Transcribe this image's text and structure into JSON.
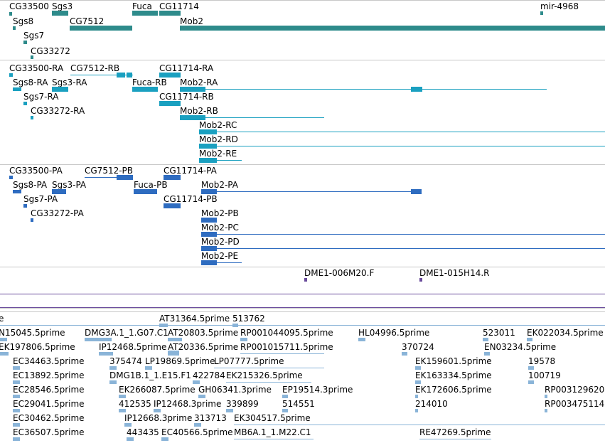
{
  "colors": {
    "gene": "#2e8b8b",
    "transcript": "#1aa0c0",
    "protein": "#2e6cc0",
    "clone": "#6a4c9c",
    "est": "#8ab4d8",
    "separator": "#c8c8c8"
  },
  "tracks": {
    "genes": {
      "labels": [
        "CG33500",
        "Sgs3",
        "Fuca",
        "CG11714",
        "mir-4968",
        "Sgs8",
        "CG7512",
        "Mob2",
        "Sgs7",
        "CG33272"
      ]
    },
    "transcripts": {
      "labels": [
        "CG33500-RA",
        "CG7512-RB",
        "CG11714-RA",
        "Sgs8-RA",
        "Sgs3-RA",
        "Fuca-RB",
        "Mob2-RA",
        "Sgs7-RA",
        "CG11714-RB",
        "CG33272-RA",
        "Mob2-RB",
        "Mob2-RC",
        "Mob2-RD",
        "Mob2-RE"
      ]
    },
    "proteins": {
      "labels": [
        "CG33500-PA",
        "CG7512-PB",
        "CG11714-PA",
        "Sgs8-PA",
        "Sgs3-PA",
        "Fuca-PB",
        "Mob2-PA",
        "Sgs7-PA",
        "CG11714-PB",
        "CG33272-PA",
        "Mob2-PB",
        "Mob2-PC",
        "Mob2-PD",
        "Mob2-PE"
      ]
    },
    "clones": {
      "labels": [
        "DME1-006M20.F",
        "DME1-015H14.R"
      ]
    },
    "ests": {
      "labels": [
        "e",
        "AT31364.5prime",
        "513762",
        "N15045.5prime",
        "DMG3A.1_1.G07.C1",
        "AT20803.5prime",
        "RP001044095.5prime",
        "HL04996.5prime",
        "523011",
        "EK022034.5prime",
        "EK197806.5prime",
        "IP12468.5prime",
        "AT20336.5prime",
        "RP001015711.5prime",
        "370724",
        "EN03234.5prime",
        "EC34463.5prime",
        "375474",
        "LP19869.5prime",
        "LP07777.5prime",
        "EK159601.5prime",
        "19578",
        "EC13892.5prime",
        "DMG1B.1_1.E15.F1",
        "422784",
        "EK215326.5prime",
        "EK163334.5prime",
        "100719",
        "EC28546.5prime",
        "EK266087.5prime",
        "GH06341.3prime",
        "EP19514.3prime",
        "EK172606.5prime",
        "RP003129620",
        "EC29041.5prime",
        "412535",
        "IP12468.3prime",
        "339899",
        "514551",
        "214010",
        "RP003475114",
        "EC30462.5prime",
        "IP12668.3prime",
        "313713",
        "EK304517.5prime",
        "EC36507.5prime",
        "443435",
        "EC40566.5prime",
        "MB6A.1_1.M22.C1",
        "RE47269.5prime"
      ]
    }
  }
}
